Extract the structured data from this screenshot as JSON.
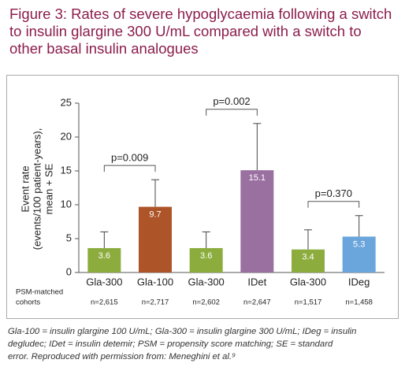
{
  "chart_data": {
    "type": "bar",
    "title": [
      "Figure 3: Rates of severe hypoglycaemia following a switch",
      "to insulin glargine 300 U/mL compared with a switch to",
      "other basal insulin analogues"
    ],
    "ylabel": [
      "Event rate",
      "(events/100 patient-years),",
      "mean + SE"
    ],
    "categories": [
      "Gla-300",
      "Gla-100",
      "Gla-300",
      "IDet",
      "Gla-300",
      "IDeg"
    ],
    "values": [
      3.6,
      9.7,
      3.6,
      15.1,
      3.4,
      5.3
    ],
    "errors": [
      2.4,
      4.0,
      2.4,
      6.9,
      2.9,
      3.1
    ],
    "colors": [
      "#8cac3e",
      "#ad5528",
      "#8cac3e",
      "#9a70a0",
      "#8cac3e",
      "#6aa5dc"
    ],
    "ylim": [
      0,
      25
    ],
    "yticks": [
      0,
      5,
      10,
      15,
      20,
      25
    ],
    "cohort_label": [
      "PSM-matched",
      "cohorts"
    ],
    "cohorts": [
      "n=2,615",
      "n=2,717",
      "n=2,602",
      "n=2,647",
      "n=1,517",
      "n=1,458"
    ],
    "comparisons": [
      {
        "label": "p=0.009",
        "from": 0,
        "to": 1
      },
      {
        "label": "p=0.002",
        "from": 2,
        "to": 3
      },
      {
        "label": "p=0.370",
        "from": 4,
        "to": 5
      }
    ],
    "footnote": [
      "Gla-100 = insulin glargine 100 U/mL; Gla-300 = insulin glargine 300 U/mL; IDeg = insulin",
      "degludec; IDet = insulin detemir; PSM = propensity score matching; SE = standard",
      "error. Reproduced with permission from: Meneghini et al.⁹"
    ]
  }
}
